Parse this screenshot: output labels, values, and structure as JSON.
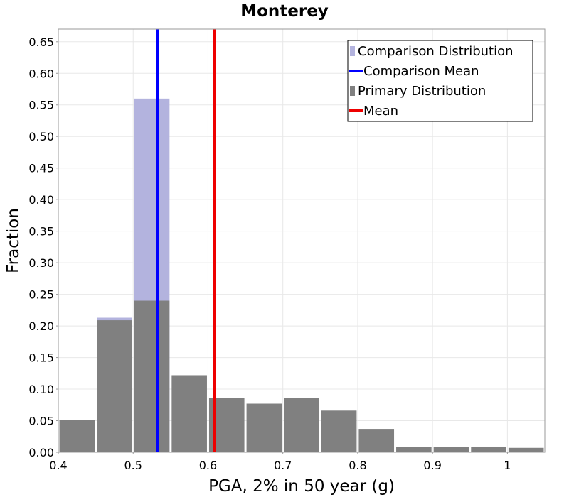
{
  "chart_data": {
    "type": "bar",
    "title": "Monterey",
    "xlabel": "PGA, 2% in 50 year (g)",
    "ylabel": "Fraction",
    "xlim": [
      0.4,
      1.05
    ],
    "ylim": [
      0,
      0.67
    ],
    "x_ticks": [
      "0.4",
      "0.5",
      "0.6",
      "0.7",
      "0.8",
      "0.9",
      "1"
    ],
    "y_ticks": [
      "0.00",
      "0.05",
      "0.10",
      "0.15",
      "0.20",
      "0.25",
      "0.30",
      "0.35",
      "0.40",
      "0.45",
      "0.50",
      "0.55",
      "0.60",
      "0.65"
    ],
    "grid": true,
    "legend_position": "top-right",
    "legend": [
      {
        "label": "Comparison Distribution",
        "kind": "box",
        "color": "#b3b3de"
      },
      {
        "label": "Comparison Mean",
        "kind": "line",
        "color": "#0000ff"
      },
      {
        "label": "Primary Distribution",
        "kind": "box",
        "color": "#808080"
      },
      {
        "label": "Mean",
        "kind": "line",
        "color": "#ee0000"
      }
    ],
    "bin_width": 0.05,
    "bins": [
      {
        "start": 0.4,
        "end": 0.45,
        "primary": 0.051,
        "comparison": 0.0
      },
      {
        "start": 0.45,
        "end": 0.5,
        "primary": 0.209,
        "comparison": 0.213
      },
      {
        "start": 0.5,
        "end": 0.55,
        "primary": 0.24,
        "comparison": 0.56
      },
      {
        "start": 0.55,
        "end": 0.6,
        "primary": 0.122,
        "comparison": 0.0
      },
      {
        "start": 0.6,
        "end": 0.65,
        "primary": 0.086,
        "comparison": 0.0
      },
      {
        "start": 0.65,
        "end": 0.7,
        "primary": 0.077,
        "comparison": 0.0
      },
      {
        "start": 0.7,
        "end": 0.75,
        "primary": 0.086,
        "comparison": 0.0
      },
      {
        "start": 0.75,
        "end": 0.8,
        "primary": 0.066,
        "comparison": 0.0
      },
      {
        "start": 0.8,
        "end": 0.85,
        "primary": 0.037,
        "comparison": 0.0
      },
      {
        "start": 0.85,
        "end": 0.9,
        "primary": 0.008,
        "comparison": 0.0
      },
      {
        "start": 0.9,
        "end": 0.95,
        "primary": 0.008,
        "comparison": 0.0
      },
      {
        "start": 0.95,
        "end": 1.0,
        "primary": 0.009,
        "comparison": 0.0
      },
      {
        "start": 1.0,
        "end": 1.05,
        "primary": 0.007,
        "comparison": 0.0
      }
    ],
    "comparison_mean": 0.533,
    "mean": 0.609,
    "colors": {
      "primary": "#808080",
      "comparison": "#b3b3de",
      "comparison_mean": "#0000ff",
      "mean": "#ee0000",
      "grid": "#e8e8e8",
      "axis": "#9a9a9a"
    }
  }
}
